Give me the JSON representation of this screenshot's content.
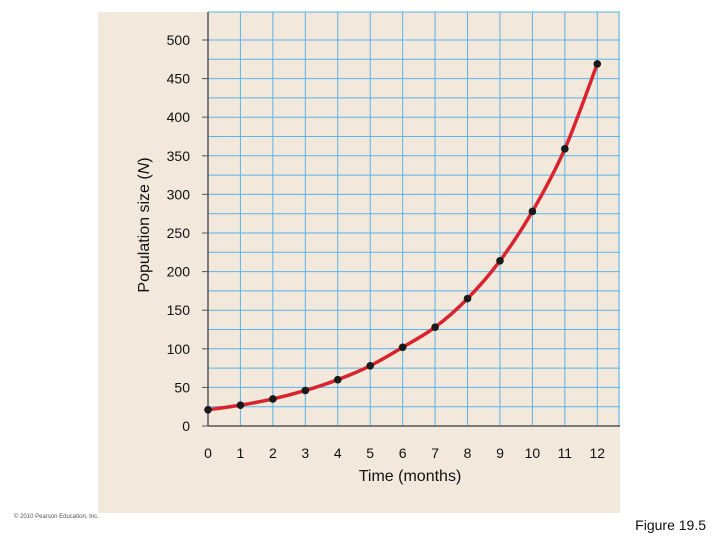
{
  "chart_data": {
    "type": "line",
    "title": "",
    "xlabel": "Time (months)",
    "ylabel_main": "Population size (",
    "ylabel_var": "N",
    "ylabel_end": ")",
    "x": [
      0,
      1,
      2,
      3,
      4,
      5,
      6,
      7,
      8,
      9,
      10,
      11,
      12
    ],
    "series": [
      {
        "values": [
          21,
          27,
          35,
          46,
          60,
          78,
          102,
          128,
          165,
          214,
          278,
          359,
          469
        ]
      }
    ],
    "xlim": [
      0,
      12.7
    ],
    "ylim": [
      0,
      500
    ],
    "xticks": [
      "0",
      "1",
      "2",
      "3",
      "4",
      "5",
      "6",
      "7",
      "8",
      "9",
      "10",
      "11",
      "12"
    ],
    "yticks": [
      "0",
      "50",
      "100",
      "150",
      "200",
      "250",
      "300",
      "350",
      "400",
      "450",
      "500"
    ],
    "grid": true,
    "colors": {
      "line": "#d9232e",
      "marker": "#1a1a1a",
      "grid": "#5ab4e8",
      "panel": "#f2e8dc"
    }
  },
  "copyright": "© 2010 Pearson Education, Inc.",
  "figure_label": "Figure 19.5"
}
